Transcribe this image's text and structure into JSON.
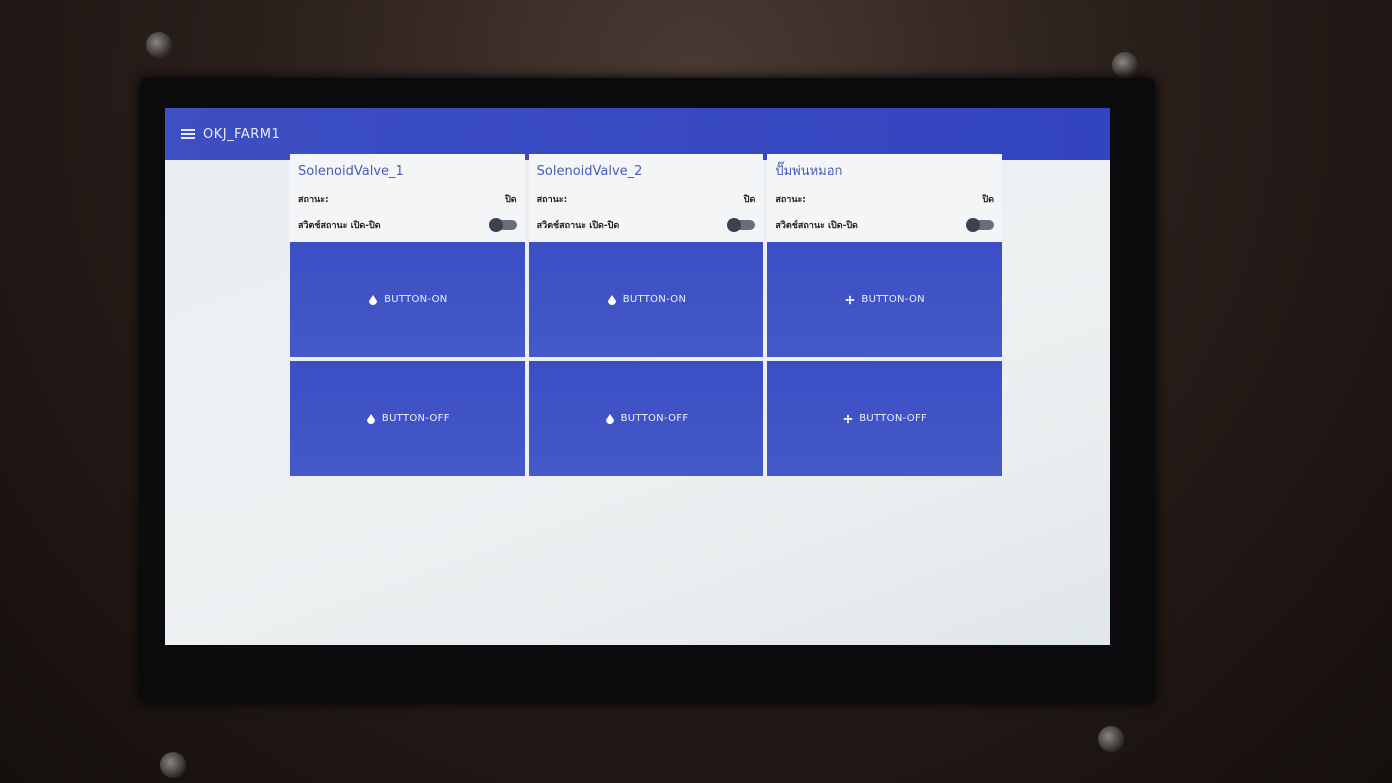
{
  "header": {
    "title": "OKJ_FARM1"
  },
  "cards": [
    {
      "title": "SolenoidValve_1",
      "status_label": "สถานะ:",
      "status_value": "ปิด",
      "switch_label": "สวิตช์สถานะ เปิด-ปิด",
      "button_on": "BUTTON-ON",
      "button_off": "BUTTON-OFF"
    },
    {
      "title": "SolenoidValve_2",
      "status_label": "สถานะ:",
      "status_value": "ปิด",
      "switch_label": "สวิตช์สถานะ เปิด-ปิด",
      "button_on": "BUTTON-ON",
      "button_off": "BUTTON-OFF"
    },
    {
      "title": "ปั๊มพ่นหมอก",
      "status_label": "สถานะ:",
      "status_value": "ปิด",
      "switch_label": "สวิตช์สถานะ เปิด-ปิด",
      "button_on": "BUTTON-ON",
      "button_off": "BUTTON-OFF"
    }
  ]
}
